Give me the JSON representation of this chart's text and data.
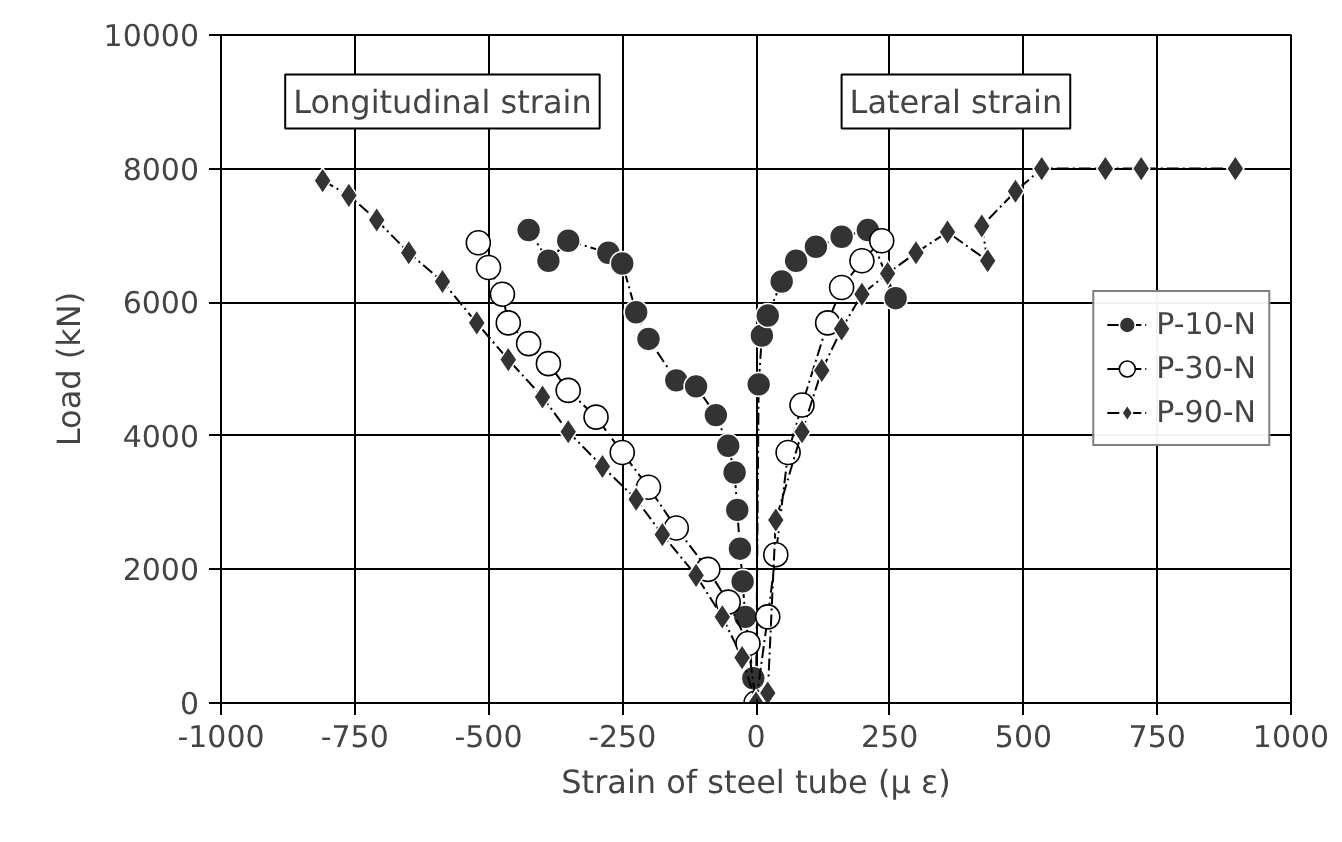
{
  "chart_data": {
    "type": "line",
    "xlabel": "Strain of steel tube (μ ε)",
    "ylabel": "Load (kN)",
    "xlim": [
      -1000,
      1000
    ],
    "xticks": [
      -1000,
      -750,
      -500,
      -250,
      0,
      250,
      500,
      750,
      1000
    ],
    "ylim": [
      0,
      10000
    ],
    "yticks": [
      0,
      2000,
      4000,
      6000,
      8000,
      10000
    ],
    "grid": true,
    "legend": "right",
    "line_style": "dashed",
    "annotations": [
      "Longitudinal strain",
      "Lateral strain"
    ],
    "series": [
      {
        "name": "P-10-N",
        "color": "#333333",
        "marker": "circle",
        "x": [
          -425,
          -388,
          -351,
          -276,
          -250,
          -224,
          -201,
          -149,
          -112,
          -75,
          -52,
          -40,
          -35,
          -30,
          -25,
          -20,
          -5,
          0,
          5,
          11,
          22,
          48,
          75,
          112,
          160,
          209,
          261
        ],
        "values": [
          7080,
          6620,
          6920,
          6740,
          6580,
          5850,
          5450,
          4830,
          4740,
          4310,
          3850,
          3450,
          2890,
          2310,
          1820,
          1290,
          370,
          0,
          4770,
          5500,
          5800,
          6310,
          6620,
          6830,
          6980,
          7080,
          6060
        ]
      },
      {
        "name": "P-30-N",
        "color": "#ffffff",
        "marker": "circle",
        "x": [
          -519,
          -500,
          -474,
          -463,
          -425,
          -388,
          -351,
          -299,
          -250,
          -201,
          -149,
          -90,
          -52,
          -15,
          0,
          22,
          37,
          60,
          86,
          134,
          160,
          198,
          235
        ],
        "values": [
          6890,
          6520,
          6120,
          5690,
          5380,
          5080,
          4680,
          4280,
          3750,
          3230,
          2620,
          2000,
          1510,
          890,
          0,
          1290,
          2220,
          3750,
          4460,
          5690,
          6220,
          6620,
          6920
        ]
      },
      {
        "name": "P-90-N",
        "color": "#333333",
        "marker": "diamond",
        "x": [
          -810,
          -761,
          -709,
          -649,
          -586,
          -522,
          -463,
          -399,
          -351,
          -287,
          -224,
          -175,
          -112,
          -63,
          -26,
          0,
          22,
          37,
          86,
          123,
          160,
          198,
          246,
          299,
          358,
          433,
          422,
          485,
          534,
          653,
          720,
          896
        ],
        "values": [
          7820,
          7600,
          7230,
          6740,
          6310,
          5690,
          5140,
          4580,
          4060,
          3540,
          3050,
          2520,
          1910,
          1290,
          680,
          0,
          150,
          2740,
          4060,
          4980,
          5600,
          6120,
          6430,
          6740,
          7050,
          6620,
          7140,
          7660,
          8000,
          8000,
          8000,
          8000
        ]
      }
    ]
  }
}
